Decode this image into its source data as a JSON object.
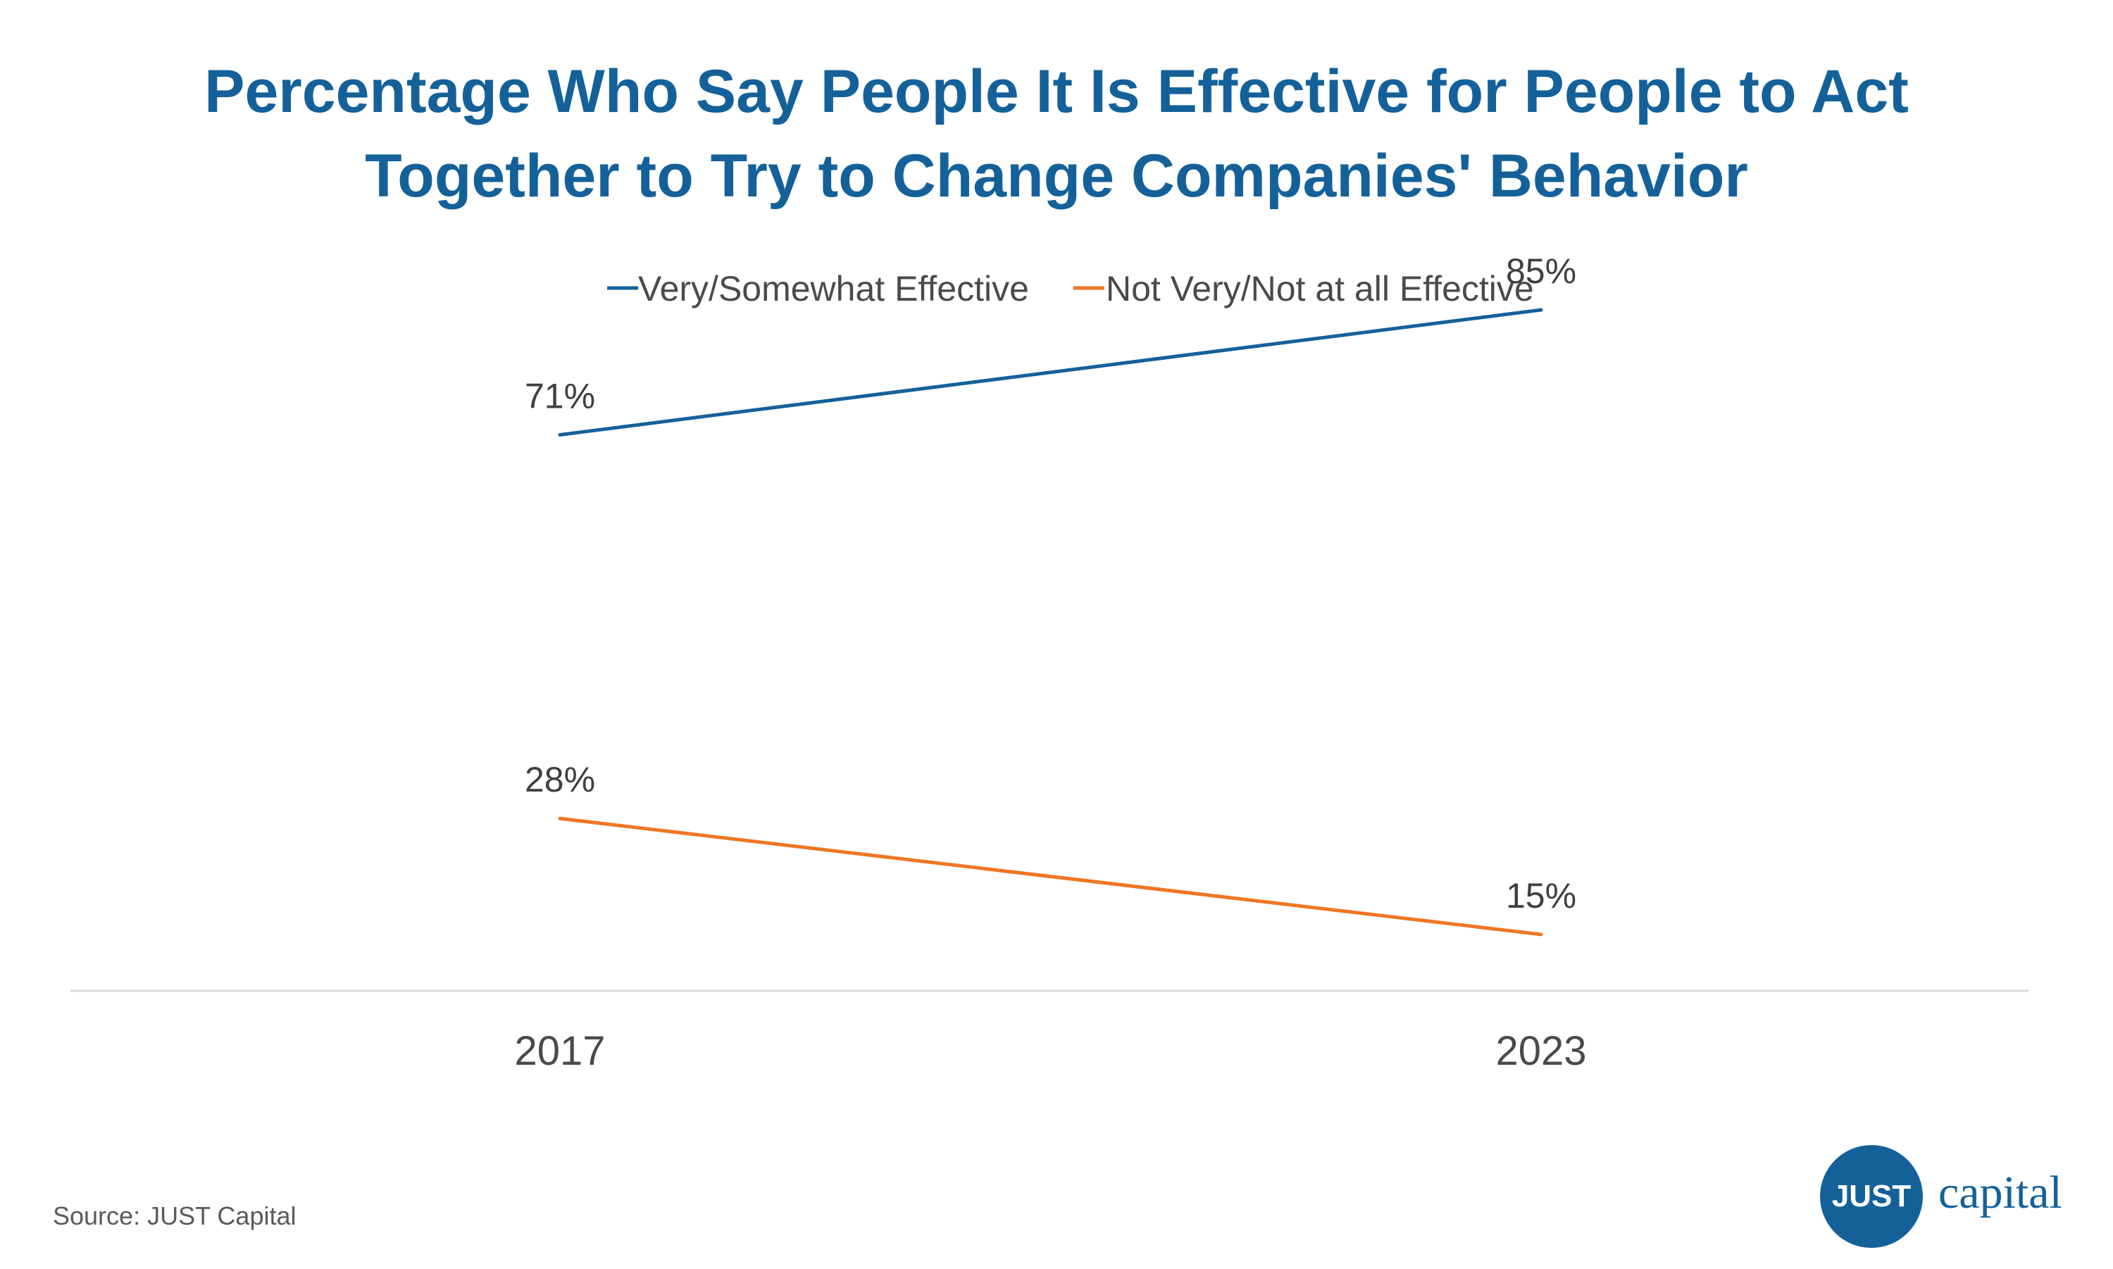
{
  "chart_data": {
    "type": "line",
    "title": "Percentage Who Say People It Is Effective for People to Act Together to Try to Change Companies' Behavior",
    "categories": [
      "2017",
      "2023"
    ],
    "series": [
      {
        "name": "Very/Somewhat Effective",
        "values": [
          71,
          85
        ],
        "labels": [
          "71%",
          "85%"
        ],
        "color": "#14619a"
      },
      {
        "name": "Not Very/Not at all Effective",
        "values": [
          28,
          15
        ],
        "labels": [
          "28%",
          "15%"
        ],
        "color": "#ed7624"
      }
    ],
    "ylim": [
      0,
      100
    ],
    "grid": false,
    "legend_position": "top-center",
    "xlabel": "",
    "ylabel": ""
  },
  "source": "Source: JUST Capital",
  "logo": {
    "mark_text": "JUST",
    "word_text": "capital"
  }
}
